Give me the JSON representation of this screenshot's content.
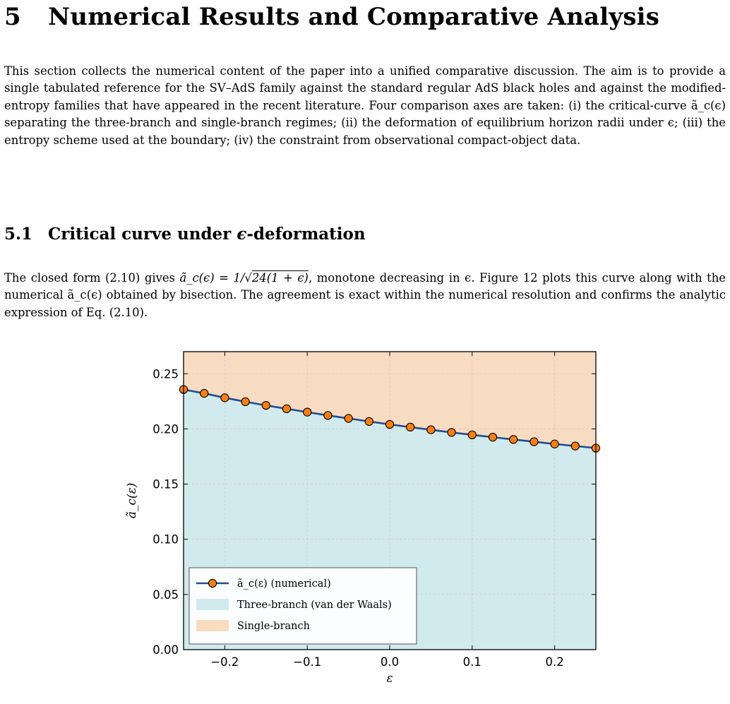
{
  "section": {
    "number": "5",
    "title": "Numerical Results and Comparative Analysis",
    "intro": "This section collects the numerical content of the paper into a unified comparative discussion. The aim is to provide a single tabulated reference for the SV–AdS family against the standard regular AdS black holes and against the modified-entropy families that have appeared in the recent literature. Four comparison axes are taken: (i) the critical-curve ã_c(ϵ) separating the three-branch and single-branch regimes; (ii) the deformation of equilibrium horizon radii under ϵ; (iii) the entropy scheme used at the boundary; (iv) the constraint from observational compact-object data."
  },
  "subsection": {
    "number": "5.1",
    "title_prefix": "Critical curve under ",
    "title_symbol": "ϵ",
    "title_suffix": "-deformation",
    "para_part1": "The closed form (2.10) gives ",
    "formula_lhs": "ã_c(ϵ) = 1/",
    "formula_radicand": "24(1 + ϵ)",
    "para_part2": ", monotone decreasing in ϵ. Figure 12 plots this curve along with the numerical ã_c(ϵ) obtained by bisection. The agreement is exact within the numerical resolution and confirms the analytic expression of Eq. (2.10)."
  },
  "chart_data": {
    "type": "line",
    "xlabel": "ε",
    "ylabel": "ã_c(ε)",
    "xlim": [
      -0.25,
      0.25
    ],
    "ylim": [
      0.0,
      0.27
    ],
    "xticks": [
      -0.2,
      -0.1,
      0.0,
      0.1,
      0.2
    ],
    "xtick_labels": [
      "−0.2",
      "−0.1",
      "0.0",
      "0.1",
      "0.2"
    ],
    "yticks": [
      0.0,
      0.05,
      0.1,
      0.15,
      0.2,
      0.25
    ],
    "ytick_labels": [
      "0.00",
      "0.05",
      "0.10",
      "0.15",
      "0.20",
      "0.25"
    ],
    "grid": true,
    "legend_position": "lower-left",
    "series": [
      {
        "name": "ã_c(ε) (numerical)",
        "color": "#1f4e96",
        "marker_color": "#ff7f0e",
        "x": [
          -0.25,
          -0.225,
          -0.2,
          -0.175,
          -0.15,
          -0.125,
          -0.1,
          -0.075,
          -0.05,
          -0.025,
          0.0,
          0.025,
          0.05,
          0.075,
          0.1,
          0.125,
          0.15,
          0.175,
          0.2,
          0.225,
          0.25
        ],
        "y": [
          0.2357,
          0.2322,
          0.2282,
          0.2246,
          0.2213,
          0.2182,
          0.2152,
          0.2122,
          0.2095,
          0.2067,
          0.2041,
          0.2016,
          0.1992,
          0.1968,
          0.1946,
          0.1925,
          0.1904,
          0.1884,
          0.1863,
          0.1845,
          0.1826
        ]
      }
    ],
    "regions": [
      {
        "name": "Three-branch (van der Waals)",
        "color": "#d1eaed"
      },
      {
        "name": "Single-branch",
        "color": "#f8dcc2"
      }
    ]
  }
}
